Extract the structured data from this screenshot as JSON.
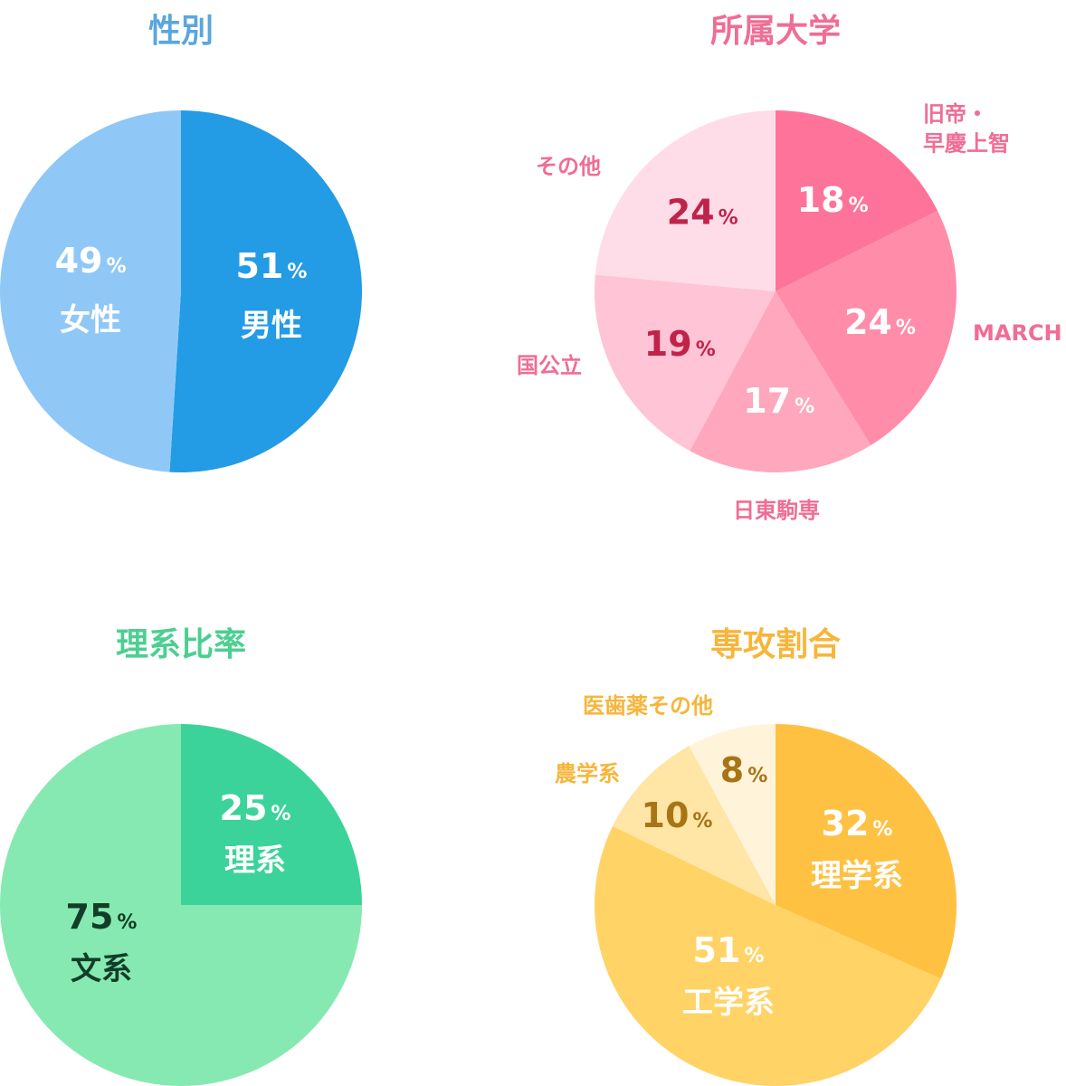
{
  "colors": {
    "gender_title": "#5aa6de",
    "university_title": "#f06d95",
    "science_title": "#4ccf91",
    "major_title": "#f7b53a"
  },
  "chart_data": [
    {
      "type": "pie",
      "title": "性別",
      "slices": [
        {
          "label": "男性",
          "value": 51,
          "value_label": "51",
          "unit": "%",
          "color": "#239be5",
          "text_color": "#ffffff"
        },
        {
          "label": "女性",
          "value": 49,
          "value_label": "49",
          "unit": "%",
          "color": "#8fc8f6",
          "text_color": "#ffffff"
        }
      ]
    },
    {
      "type": "pie",
      "title": "所属大学",
      "slices": [
        {
          "label": "旧帝・\n早慶上智",
          "value": 18,
          "value_label": "18",
          "unit": "%",
          "color": "#fe7399",
          "text_color": "#ffffff"
        },
        {
          "label": "MARCH",
          "value": 24,
          "value_label": "24",
          "unit": "%",
          "color": "#ff8ca8",
          "text_color": "#ffffff"
        },
        {
          "label": "日東駒専",
          "value": 17,
          "value_label": "17",
          "unit": "%",
          "color": "#ffa7bd",
          "text_color": "#ffffff"
        },
        {
          "label": "国公立",
          "value": 19,
          "value_label": "19",
          "unit": "%",
          "color": "#ffc4d5",
          "text_color": "#c0234a"
        },
        {
          "label": "その他",
          "value": 24,
          "value_label": "24",
          "unit": "%",
          "color": "#ffdde8",
          "text_color": "#c0234a"
        }
      ]
    },
    {
      "type": "pie",
      "title": "理系比率",
      "slices": [
        {
          "label": "理系",
          "value": 25,
          "value_label": "25",
          "unit": "%",
          "color": "#3bd39a",
          "text_color": "#ffffff"
        },
        {
          "label": "文系",
          "value": 75,
          "value_label": "75",
          "unit": "%",
          "color": "#86e9b1",
          "text_color": "#123d28"
        }
      ]
    },
    {
      "type": "pie",
      "title": "専攻割合",
      "slices": [
        {
          "label": "理学系",
          "value": 32,
          "value_label": "32",
          "unit": "%",
          "color": "#ffc142",
          "text_color": "#ffffff"
        },
        {
          "label": "工学系",
          "value": 51,
          "value_label": "51",
          "unit": "%",
          "color": "#ffd365",
          "text_color": "#ffffff"
        },
        {
          "label": "農学系",
          "value": 10,
          "value_label": "10",
          "unit": "%",
          "color": "#ffe5a6",
          "text_color": "#a87416"
        },
        {
          "label": "医歯薬その他",
          "value": 8,
          "value_label": "8",
          "unit": "%",
          "color": "#fff4d9",
          "text_color": "#a87416"
        }
      ]
    }
  ]
}
